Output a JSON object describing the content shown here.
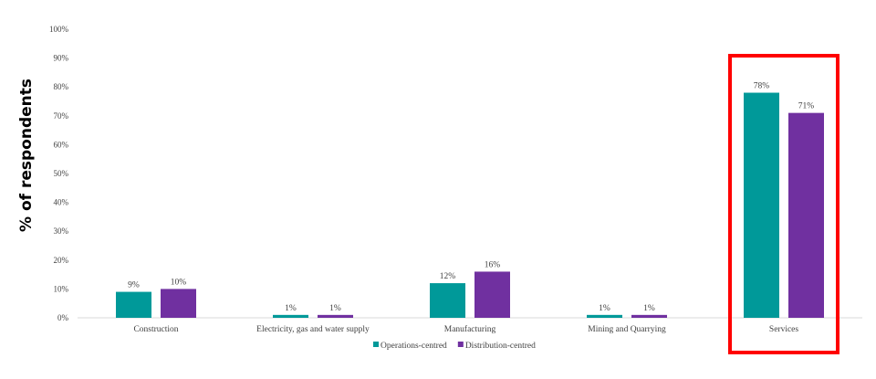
{
  "chart_data": {
    "type": "bar",
    "categories": [
      "Construction",
      "Electricity, gas and water supply",
      "Manufacturing",
      "Mining and Quarrying",
      "Services"
    ],
    "series": [
      {
        "name": "Operations-centred",
        "values": [
          9,
          1,
          12,
          1,
          78
        ],
        "labels": [
          "9%",
          "1%",
          "12%",
          "1%",
          "78%"
        ],
        "color": "#009999"
      },
      {
        "name": "Distribution-centred",
        "values": [
          10,
          1,
          16,
          1,
          71
        ],
        "labels": [
          "10%",
          "1%",
          "16%",
          "1%",
          "71%"
        ],
        "color": "#7030A0"
      }
    ],
    "ylabel": "% of respondents",
    "ylim": [
      0,
      100
    ],
    "yticks": [
      "0%",
      "10%",
      "20%",
      "30%",
      "40%",
      "50%",
      "60%",
      "70%",
      "80%",
      "90%",
      "100%"
    ],
    "grid": false,
    "legend_position": "bottom",
    "highlight": {
      "category": "Services",
      "color": "#FF0000"
    }
  }
}
